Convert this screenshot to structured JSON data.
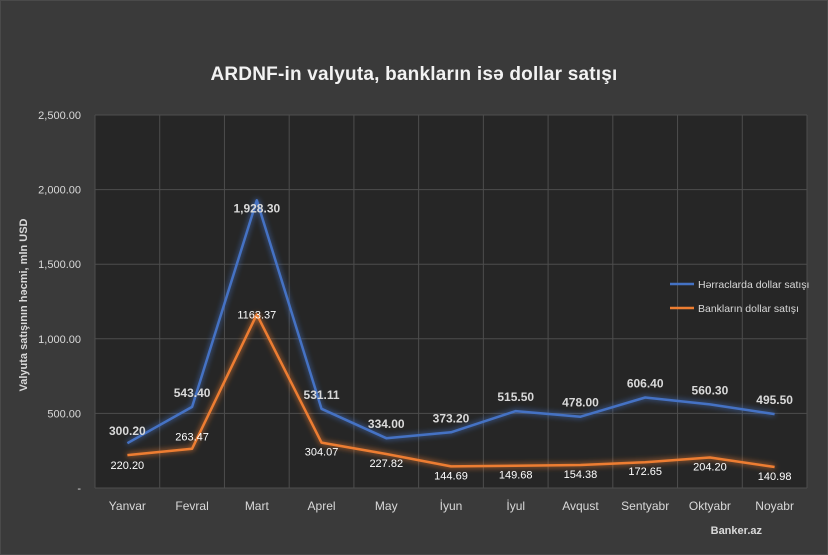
{
  "chart_data": {
    "type": "line",
    "title": "ARDNF-in valyuta, bankların isə dollar satışı",
    "ylabel": "Valyuta satışının həcmi, mln USD",
    "xlabel": "",
    "categories": [
      "Yanvar",
      "Fevral",
      "Mart",
      "Aprel",
      "May",
      "İyun",
      "İyul",
      "Avqust",
      "Sentyabr",
      "Oktyabr",
      "Noyabr"
    ],
    "ylim": [
      0,
      2500
    ],
    "yticks": [
      0,
      500,
      1000,
      1500,
      2000,
      2500
    ],
    "ytick_labels": [
      "-",
      "500.00",
      "1,000.00",
      "1,500.00",
      "2,000.00",
      "2,500.00"
    ],
    "grid": true,
    "legend_position": "right",
    "series": [
      {
        "name": "Hərraclarda dollar satışı",
        "color": "#4472c4",
        "values": [
          300.2,
          543.4,
          1928.3,
          531.11,
          334.0,
          373.2,
          515.5,
          478.0,
          606.4,
          560.3,
          495.5
        ],
        "labels": [
          "300.20",
          "543.40",
          "1,928.30",
          "531.11",
          "334.00",
          "373.20",
          "515.50",
          "478.00",
          "606.40",
          "560.30",
          "495.50"
        ]
      },
      {
        "name": "Bankların dollar satışı",
        "color": "#ed7d31",
        "values": [
          220.2,
          263.47,
          1163.37,
          304.07,
          227.82,
          144.69,
          149.68,
          154.38,
          172.65,
          204.2,
          140.98
        ],
        "labels": [
          "220.20",
          "263.47",
          "1163.37",
          "304.07",
          "227.82",
          "144.69",
          "149.68",
          "154.38",
          "172.65",
          "204.20",
          "140.98"
        ]
      }
    ]
  },
  "source": "Banker.az"
}
